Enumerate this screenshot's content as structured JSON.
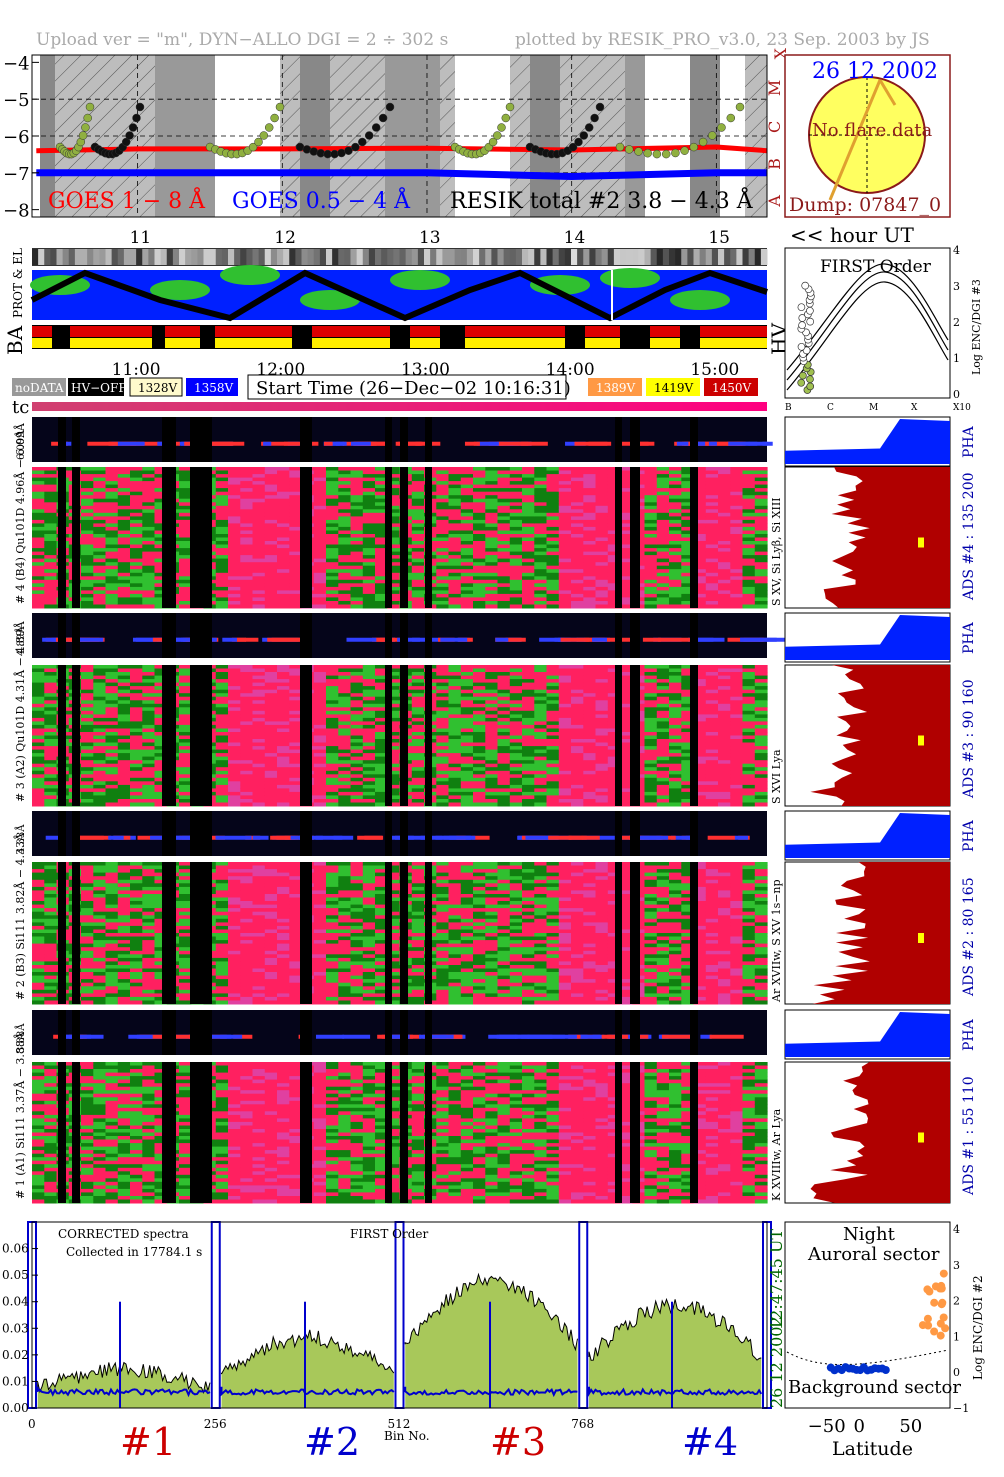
{
  "header": {
    "upload": "Upload ver = \"m\", DYN−ALLO DGI =   2 ÷ 302 s",
    "plotted": "plotted by RESIK_PRO_v3.0, 23 Sep. 2003 by JS"
  },
  "goes_panel": {
    "y_ticks": [
      "−4",
      "−5",
      "−6",
      "−7",
      "−8"
    ],
    "class_letters": [
      "X",
      "M",
      "C",
      "B",
      "A"
    ],
    "legend_goes18": "GOES 1 − 8 Å",
    "legend_goes054": "GOES 0.5 − 4 Å",
    "legend_resik": "RESIK total #2  3.8 − 4.3 Å",
    "colors": {
      "goes18": "#ff0000",
      "goes054": "#0000ff",
      "resik": "#000000",
      "bg_shade": "#a0a0a0"
    }
  },
  "hour_axis": {
    "ticks": [
      "11",
      "12",
      "13",
      "14",
      "15"
    ],
    "label": "<< hour UT"
  },
  "hour_axis2": {
    "ticks": [
      "11:00",
      "12:00",
      "13:00",
      "14:00",
      "15:00"
    ]
  },
  "sun_panel": {
    "date": "26 12 2002",
    "no_flare": "No flare data",
    "dump": "Dump: 07847_0"
  },
  "prot_panel": {
    "label": "PROT & EL"
  },
  "ba_panel": {
    "left": "BA",
    "right": "HV"
  },
  "legend_boxes": {
    "nodata": "noDATA",
    "hvoff": "HV−OFF",
    "l328": "1328V",
    "l358": "1358V",
    "start_time": "Start Time (26−Dec−02 10:16:31)",
    "l389": "1389V",
    "l419": "1419V",
    "l450": "1450V"
  },
  "tc_label": "tc",
  "first_order": {
    "title": "FIRST Order",
    "y_label": "Log ENC/DGI #3",
    "y_ticks": [
      "0",
      "1",
      "2",
      "3",
      "4"
    ],
    "x_ticks": [
      "B",
      "C",
      "M",
      "X",
      "X10"
    ]
  },
  "channels": [
    {
      "pha_left": "6.09Å",
      "left": "# 4 (B4) Qu101D 4.96Å − 6.09Å",
      "side": "S XV, Si Lyβ, Si XIII",
      "ads": "ADS #4 :   135 200",
      "pha": "PHA"
    },
    {
      "pha_left": "4.89Å",
      "left": "# 3 (A2) Qu101D 4.31Å − 4.89Å",
      "side": "S XVI Lya",
      "ads": "ADS #3 :   90 160",
      "pha": "PHA"
    },
    {
      "pha_left": "4.33Å",
      "left": "# 2 (B3) Si111 3.82Å − 4.33Å",
      "side": "Ar XVIIw, S XV 1s−np",
      "ads": "ADS #2 :   80 165",
      "pha": "PHA"
    },
    {
      "pha_left": "3.88Å",
      "left": "# 1 (A1) Si111 3.37Å − 3.88Å",
      "side": "K XVIIIw, Ar Lya",
      "ads": "ADS #1 :   55 110",
      "pha": "PHA"
    }
  ],
  "spectrum": {
    "title_corrected": "CORRECTED spectra",
    "title_collected": "Collected in 17784.1 s",
    "title_order": "FIRST Order",
    "time_label": "12:47:45 UT",
    "date_label": "26 12 2002",
    "x_label": "Bin No.",
    "x_ticks": [
      "0",
      "256",
      "512",
      "768"
    ],
    "y_ticks": [
      "0.00",
      "0.01",
      "0.02",
      "0.03",
      "0.04",
      "0.05",
      "0.06"
    ],
    "channel_labels": [
      "#1",
      "#2",
      "#3",
      "#4"
    ],
    "colors": {
      "fill": "#a8c85a",
      "line": "#000000",
      "blue": "#0000cc"
    }
  },
  "latitude_panel": {
    "night": "Night",
    "auroral": "Auroral sector",
    "background": "Background sector",
    "x_label": "Latitude",
    "x_ticks": [
      "−50",
      "0",
      "50"
    ],
    "y_label": "Log ENC/DGI #2",
    "y_ticks": [
      "−1",
      "0",
      "1",
      "2",
      "3",
      "4"
    ]
  },
  "chart_data": {
    "type": "line",
    "title": "",
    "series": [
      {
        "name": "GOES 1 − 8 Å",
        "x_hours": [
          10.3,
          11.0,
          12.0,
          13.0,
          14.0,
          15.0,
          15.35
        ],
        "values_log": [
          -6.4,
          -6.35,
          -6.35,
          -6.33,
          -6.38,
          -6.3,
          -6.4
        ]
      },
      {
        "name": "GOES 0.5 − 4 Å",
        "x_hours": [
          10.3,
          11.0,
          12.0,
          13.0,
          14.0,
          15.0,
          15.35
        ],
        "values_log": [
          -7.0,
          -7.0,
          -7.0,
          -7.0,
          -7.1,
          -7.0,
          -7.0
        ]
      }
    ],
    "ylim": [
      -8.2,
      -3.8
    ],
    "xlim_hours": [
      10.27,
      15.35
    ]
  }
}
